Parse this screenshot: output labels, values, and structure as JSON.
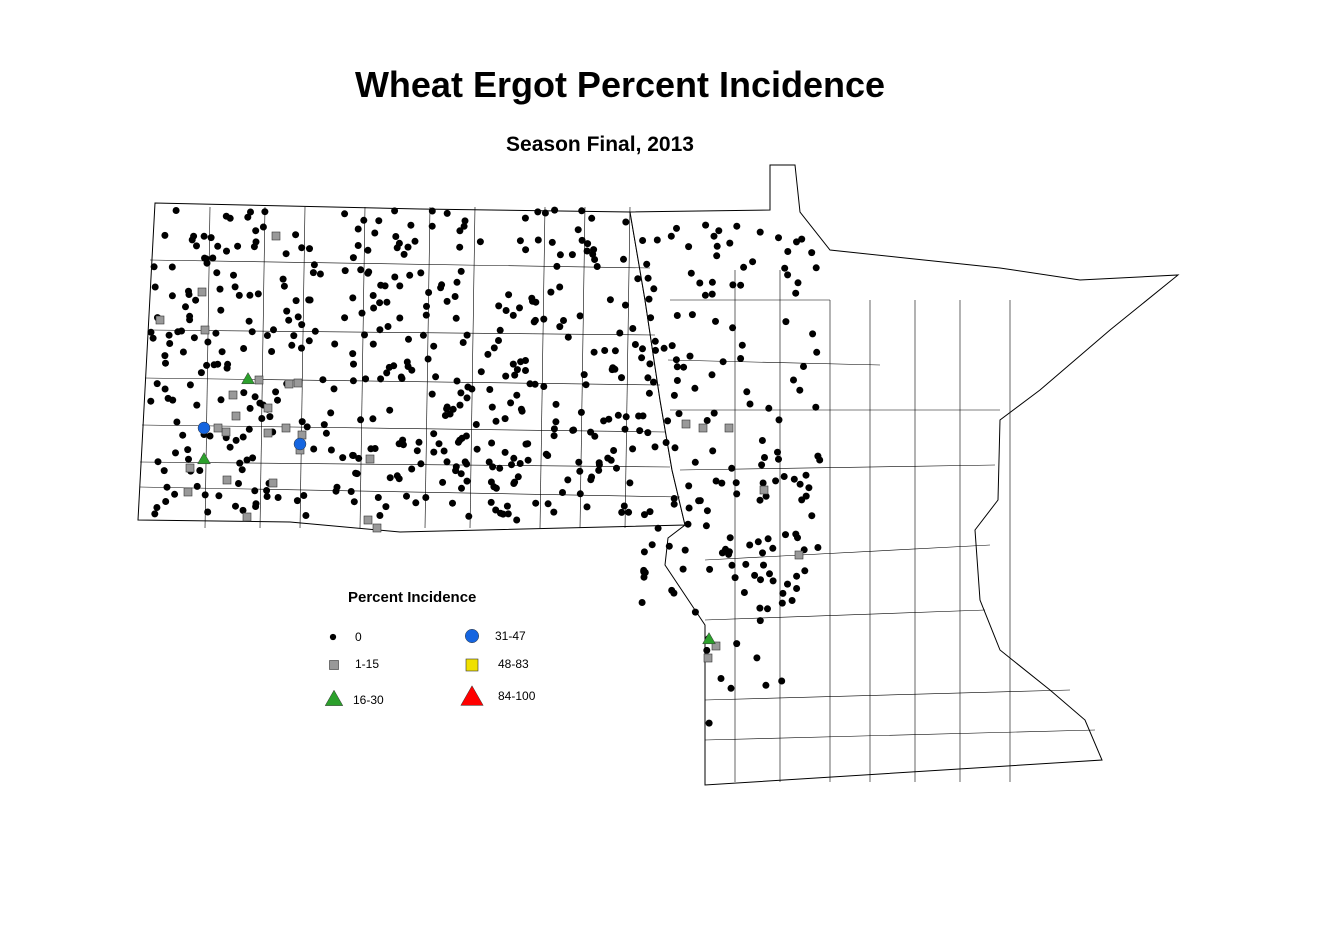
{
  "title": "Wheat Ergot Percent Incidence",
  "subtitle": "Season Final, 2013",
  "legend": {
    "title": "Percent Incidence",
    "items": [
      {
        "label": "0",
        "color": "#000000",
        "shape": "dot"
      },
      {
        "label": "1-15",
        "color": "#999999",
        "shape": "square"
      },
      {
        "label": "16-30",
        "color": "#2ca02c",
        "shape": "triangle"
      },
      {
        "label": "31-47",
        "color": "#1565e0",
        "shape": "circle"
      },
      {
        "label": "48-83",
        "color": "#f0e000",
        "shape": "square"
      },
      {
        "label": "84-100",
        "color": "#ff0000",
        "shape": "triangle"
      }
    ]
  }
}
